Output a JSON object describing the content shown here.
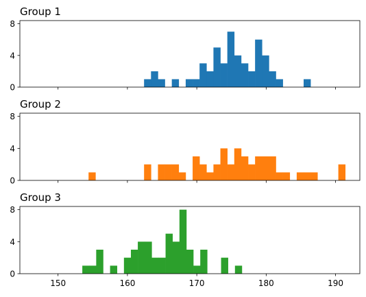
{
  "chart_data": [
    {
      "type": "histogram",
      "title": "Group 1",
      "color": "#1f77b4",
      "xlim": [
        144.5,
        193.5
      ],
      "ylim": [
        0,
        8.4
      ],
      "xticks": [
        150,
        160,
        170,
        180,
        190
      ],
      "xtick_labels": [],
      "yticks": [
        0,
        4,
        8
      ],
      "ytick_labels": [
        "0",
        "4",
        "8"
      ],
      "bins": [
        {
          "start": 162.4,
          "end": 163.4,
          "count": 1
        },
        {
          "start": 163.4,
          "end": 164.4,
          "count": 2
        },
        {
          "start": 164.4,
          "end": 165.4,
          "count": 1
        },
        {
          "start": 166.4,
          "end": 167.4,
          "count": 1
        },
        {
          "start": 168.4,
          "end": 169.4,
          "count": 1
        },
        {
          "start": 169.4,
          "end": 170.4,
          "count": 1
        },
        {
          "start": 170.4,
          "end": 171.4,
          "count": 3
        },
        {
          "start": 171.4,
          "end": 172.4,
          "count": 2
        },
        {
          "start": 172.4,
          "end": 173.4,
          "count": 5
        },
        {
          "start": 173.4,
          "end": 174.4,
          "count": 3
        },
        {
          "start": 174.4,
          "end": 175.4,
          "count": 7
        },
        {
          "start": 175.4,
          "end": 176.4,
          "count": 4
        },
        {
          "start": 176.4,
          "end": 177.4,
          "count": 3
        },
        {
          "start": 177.4,
          "end": 178.4,
          "count": 2
        },
        {
          "start": 178.4,
          "end": 179.4,
          "count": 6
        },
        {
          "start": 179.4,
          "end": 180.4,
          "count": 4
        },
        {
          "start": 180.4,
          "end": 181.4,
          "count": 2
        },
        {
          "start": 181.4,
          "end": 182.4,
          "count": 1
        },
        {
          "start": 185.4,
          "end": 186.4,
          "count": 1
        }
      ]
    },
    {
      "type": "histogram",
      "title": "Group 2",
      "color": "#ff7f0e",
      "xlim": [
        144.5,
        193.5
      ],
      "ylim": [
        0,
        8.4
      ],
      "xticks": [
        150,
        160,
        170,
        180,
        190
      ],
      "xtick_labels": [],
      "yticks": [
        0,
        4,
        8
      ],
      "ytick_labels": [
        "0",
        "4",
        "8"
      ],
      "bins": [
        {
          "start": 154.4,
          "end": 155.4,
          "count": 1
        },
        {
          "start": 162.4,
          "end": 163.4,
          "count": 2
        },
        {
          "start": 164.4,
          "end": 165.4,
          "count": 2
        },
        {
          "start": 165.4,
          "end": 166.4,
          "count": 2
        },
        {
          "start": 166.4,
          "end": 167.4,
          "count": 2
        },
        {
          "start": 167.4,
          "end": 168.4,
          "count": 1
        },
        {
          "start": 169.4,
          "end": 170.4,
          "count": 3
        },
        {
          "start": 170.4,
          "end": 171.4,
          "count": 2
        },
        {
          "start": 171.4,
          "end": 172.4,
          "count": 1
        },
        {
          "start": 172.4,
          "end": 173.4,
          "count": 2
        },
        {
          "start": 173.4,
          "end": 174.4,
          "count": 4
        },
        {
          "start": 174.4,
          "end": 175.4,
          "count": 2
        },
        {
          "start": 175.4,
          "end": 176.4,
          "count": 4
        },
        {
          "start": 176.4,
          "end": 177.4,
          "count": 3
        },
        {
          "start": 177.4,
          "end": 178.4,
          "count": 2
        },
        {
          "start": 178.4,
          "end": 179.4,
          "count": 3
        },
        {
          "start": 179.4,
          "end": 180.4,
          "count": 3
        },
        {
          "start": 180.4,
          "end": 181.4,
          "count": 3
        },
        {
          "start": 181.4,
          "end": 182.4,
          "count": 1
        },
        {
          "start": 182.4,
          "end": 183.4,
          "count": 1
        },
        {
          "start": 184.4,
          "end": 185.4,
          "count": 1
        },
        {
          "start": 185.4,
          "end": 186.4,
          "count": 1
        },
        {
          "start": 186.4,
          "end": 187.4,
          "count": 1
        },
        {
          "start": 190.4,
          "end": 191.4,
          "count": 2
        }
      ]
    },
    {
      "type": "histogram",
      "title": "Group 3",
      "color": "#2ca02c",
      "xlim": [
        144.5,
        193.5
      ],
      "ylim": [
        0,
        8.4
      ],
      "xticks": [
        150,
        160,
        170,
        180,
        190
      ],
      "xtick_labels": [
        "150",
        "160",
        "170",
        "180",
        "190"
      ],
      "yticks": [
        0,
        4,
        8
      ],
      "ytick_labels": [
        "0",
        "4",
        "8"
      ],
      "bins": [
        {
          "start": 153.5,
          "end": 154.5,
          "count": 1
        },
        {
          "start": 154.5,
          "end": 155.5,
          "count": 1
        },
        {
          "start": 155.5,
          "end": 156.5,
          "count": 3
        },
        {
          "start": 157.5,
          "end": 158.5,
          "count": 1
        },
        {
          "start": 159.5,
          "end": 160.5,
          "count": 2
        },
        {
          "start": 160.5,
          "end": 161.5,
          "count": 3
        },
        {
          "start": 161.5,
          "end": 162.5,
          "count": 4
        },
        {
          "start": 162.5,
          "end": 163.5,
          "count": 4
        },
        {
          "start": 163.5,
          "end": 164.5,
          "count": 2
        },
        {
          "start": 164.5,
          "end": 165.5,
          "count": 2
        },
        {
          "start": 165.5,
          "end": 166.5,
          "count": 5
        },
        {
          "start": 166.5,
          "end": 167.5,
          "count": 4
        },
        {
          "start": 167.5,
          "end": 168.5,
          "count": 8
        },
        {
          "start": 168.5,
          "end": 169.5,
          "count": 3
        },
        {
          "start": 169.5,
          "end": 170.5,
          "count": 1
        },
        {
          "start": 170.5,
          "end": 171.5,
          "count": 3
        },
        {
          "start": 173.5,
          "end": 174.5,
          "count": 2
        },
        {
          "start": 175.5,
          "end": 176.5,
          "count": 1
        }
      ]
    }
  ]
}
